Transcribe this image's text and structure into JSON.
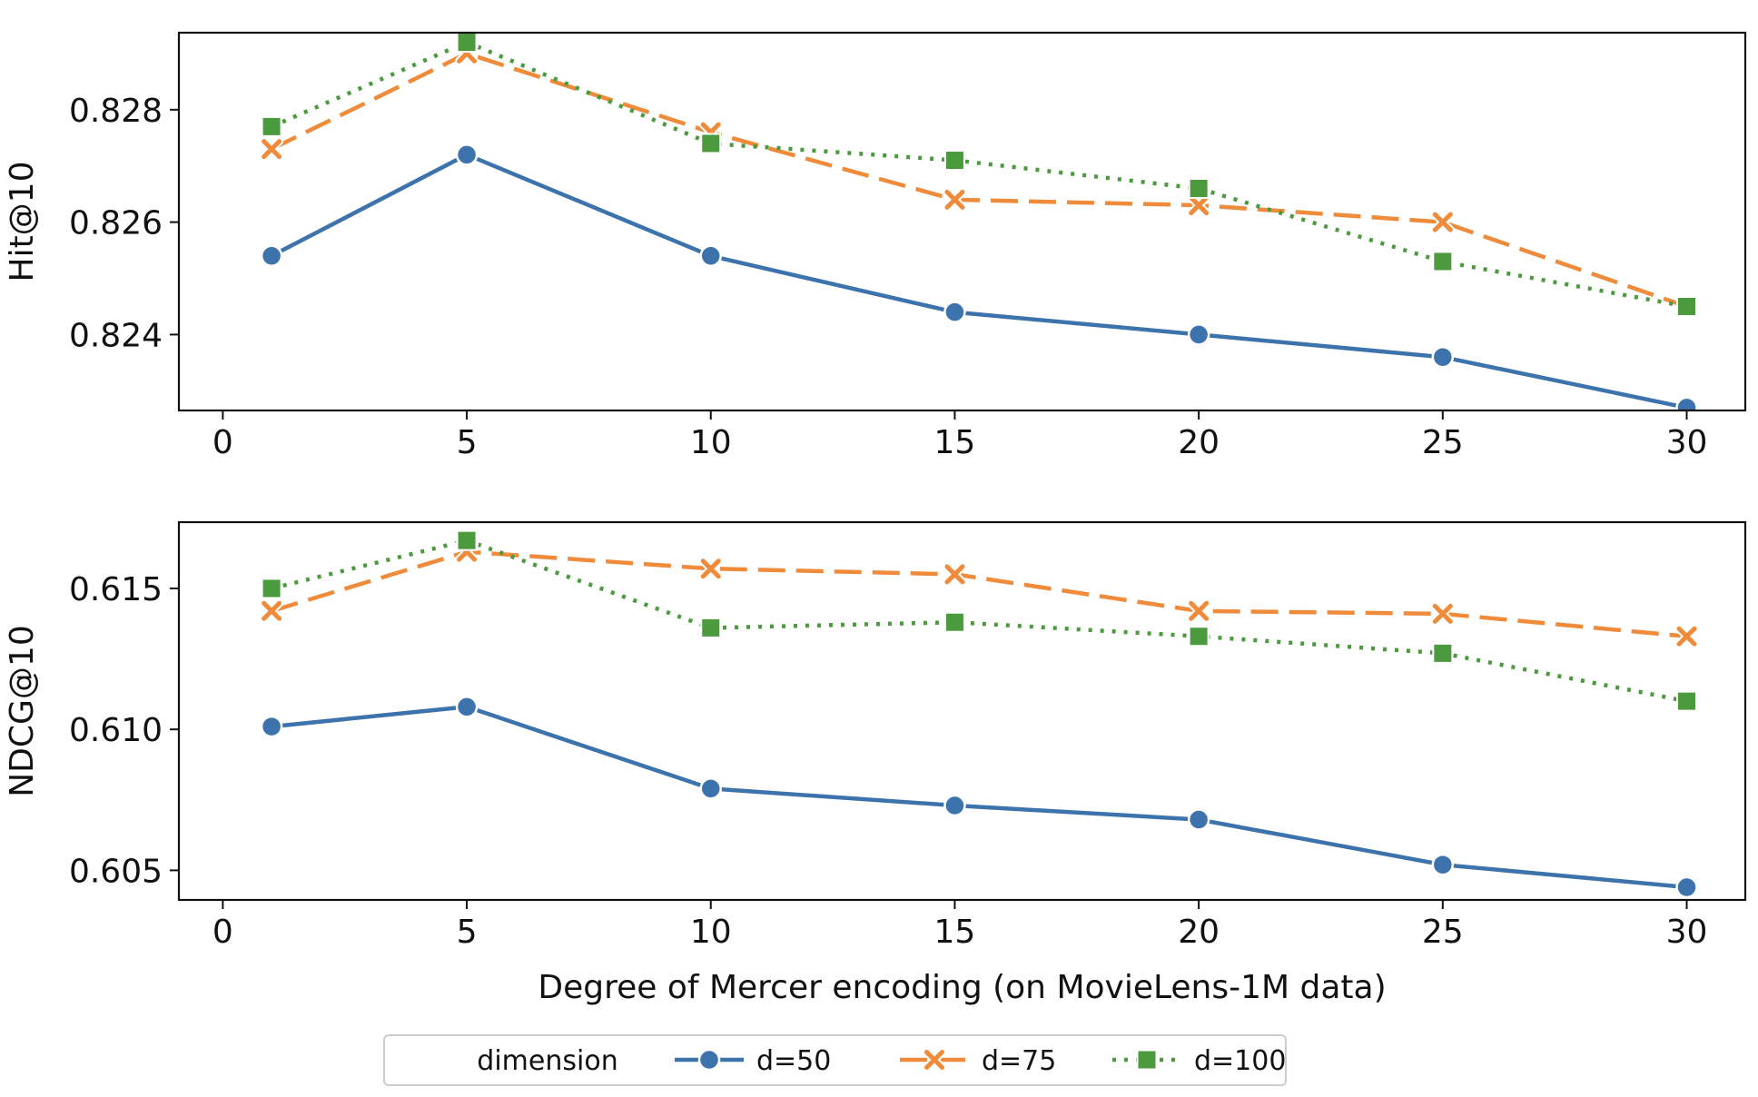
{
  "chart_data": [
    {
      "type": "line",
      "title": "",
      "xlabel": "",
      "ylabel": "Hit@10",
      "xlim": [
        -0.9,
        31.2
      ],
      "ylim": [
        0.82265,
        0.82937
      ],
      "xticks": [
        0,
        5,
        10,
        15,
        20,
        25,
        30
      ],
      "yticks": [
        0.824,
        0.826,
        0.828
      ],
      "x": [
        1,
        5,
        10,
        15,
        20,
        25,
        30
      ],
      "series": [
        {
          "name": "d=50",
          "values": [
            0.8254,
            0.8272,
            0.8254,
            0.8244,
            0.824,
            0.8236,
            0.8227
          ]
        },
        {
          "name": "d=75",
          "values": [
            0.8273,
            0.829,
            0.8276,
            0.8264,
            0.8263,
            0.826,
            0.8245
          ]
        },
        {
          "name": "d=100",
          "values": [
            0.8277,
            0.8292,
            0.8274,
            0.8271,
            0.8266,
            0.8253,
            0.8245
          ]
        }
      ]
    },
    {
      "type": "line",
      "title": "",
      "xlabel": "Degree of Mercer encoding (on MovieLens-1M data)",
      "ylabel": "NDCG@10",
      "xlim": [
        -0.9,
        31.2
      ],
      "ylim": [
        0.60395,
        0.61735
      ],
      "xticks": [
        0,
        5,
        10,
        15,
        20,
        25,
        30
      ],
      "yticks": [
        0.605,
        0.61,
        0.615
      ],
      "x": [
        1,
        5,
        10,
        15,
        20,
        25,
        30
      ],
      "series": [
        {
          "name": "d=50",
          "values": [
            0.6101,
            0.6108,
            0.6079,
            0.6073,
            0.6068,
            0.6052,
            0.6044
          ]
        },
        {
          "name": "d=75",
          "values": [
            0.6142,
            0.6163,
            0.6157,
            0.6155,
            0.6142,
            0.6141,
            0.6133
          ]
        },
        {
          "name": "d=100",
          "values": [
            0.615,
            0.6167,
            0.6136,
            0.6138,
            0.6133,
            0.6127,
            0.611
          ]
        }
      ]
    }
  ],
  "legend": {
    "title": "dimension",
    "placement": "bottom-center",
    "entries": [
      {
        "label": "d=50",
        "color": "#3d73ad",
        "marker": "circle",
        "dash": "solid"
      },
      {
        "label": "d=75",
        "color": "#ef8b3a",
        "marker": "x",
        "dash": "dashed"
      },
      {
        "label": "d=100",
        "color": "#4c9a3e",
        "marker": "square",
        "dash": "dotted"
      }
    ]
  }
}
